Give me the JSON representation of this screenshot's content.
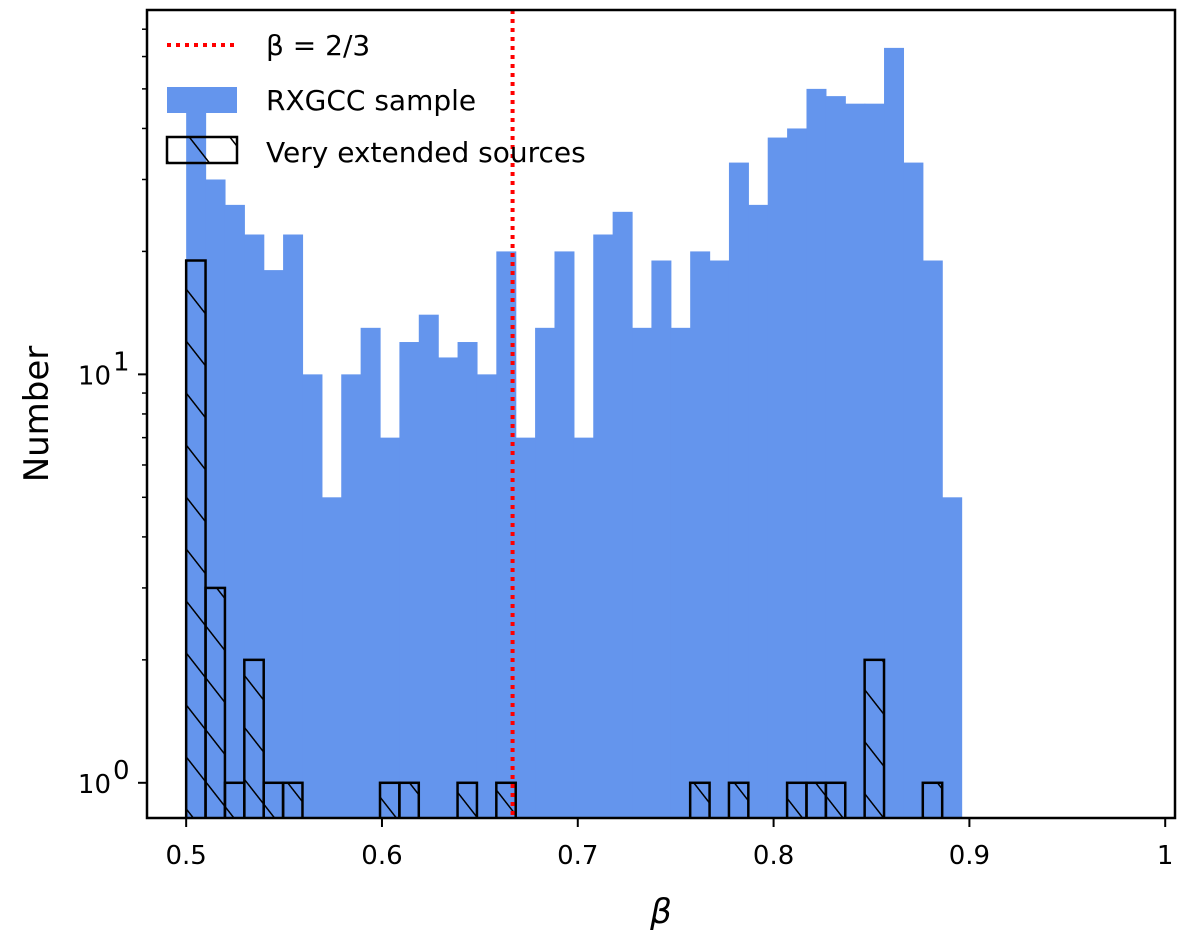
{
  "chart_data": {
    "type": "histogram",
    "title": "",
    "xlabel": "β",
    "ylabel": "Number",
    "xlim": [
      0.48,
      1.005
    ],
    "ylim": [
      0.82,
      78
    ],
    "yscale": "log",
    "bin_start": 0.5,
    "bin_width": 0.0099,
    "xticks": [
      "0.5",
      "0.6",
      "0.7",
      "0.8",
      "0.9",
      "1"
    ],
    "xtick_values": [
      0.5,
      0.6,
      0.7,
      0.8,
      0.9,
      1.0
    ],
    "yticks": [
      {
        "value": 1,
        "base": "10",
        "exp": "0"
      },
      {
        "value": 10,
        "base": "10",
        "exp": "1"
      }
    ],
    "series": [
      {
        "name": "RXGCC sample",
        "color": "#6495ED",
        "style": "filled",
        "values": [
          47,
          30,
          26,
          22,
          18,
          22,
          10,
          5,
          10,
          13,
          7,
          12,
          14,
          11,
          12,
          10,
          20,
          7,
          13,
          20,
          7,
          22,
          25,
          13,
          19,
          13,
          20,
          19,
          33,
          26,
          38,
          40,
          50,
          48,
          46,
          46,
          63,
          33,
          19,
          5
        ]
      },
      {
        "name": "Very extended sources",
        "color": "#000000",
        "style": "hatched",
        "values": [
          19,
          3,
          1,
          2,
          1,
          1,
          0,
          0,
          0,
          0,
          1,
          1,
          0,
          0,
          1,
          0,
          1,
          0,
          0,
          0,
          0,
          0,
          0,
          0,
          0,
          0,
          1,
          0,
          1,
          0,
          0,
          1,
          1,
          1,
          0,
          2,
          0,
          0,
          1,
          0
        ]
      }
    ],
    "vline": {
      "name": "β = 2/3",
      "x": 0.6667,
      "color": "#FF0000",
      "style": "dotted"
    },
    "legend_position": "top-left",
    "legend": [
      {
        "label": "β = 2/3",
        "marker": "dotted-line"
      },
      {
        "label": "RXGCC sample",
        "marker": "filled-patch"
      },
      {
        "label": "Very extended sources",
        "marker": "hatched-patch"
      }
    ]
  }
}
